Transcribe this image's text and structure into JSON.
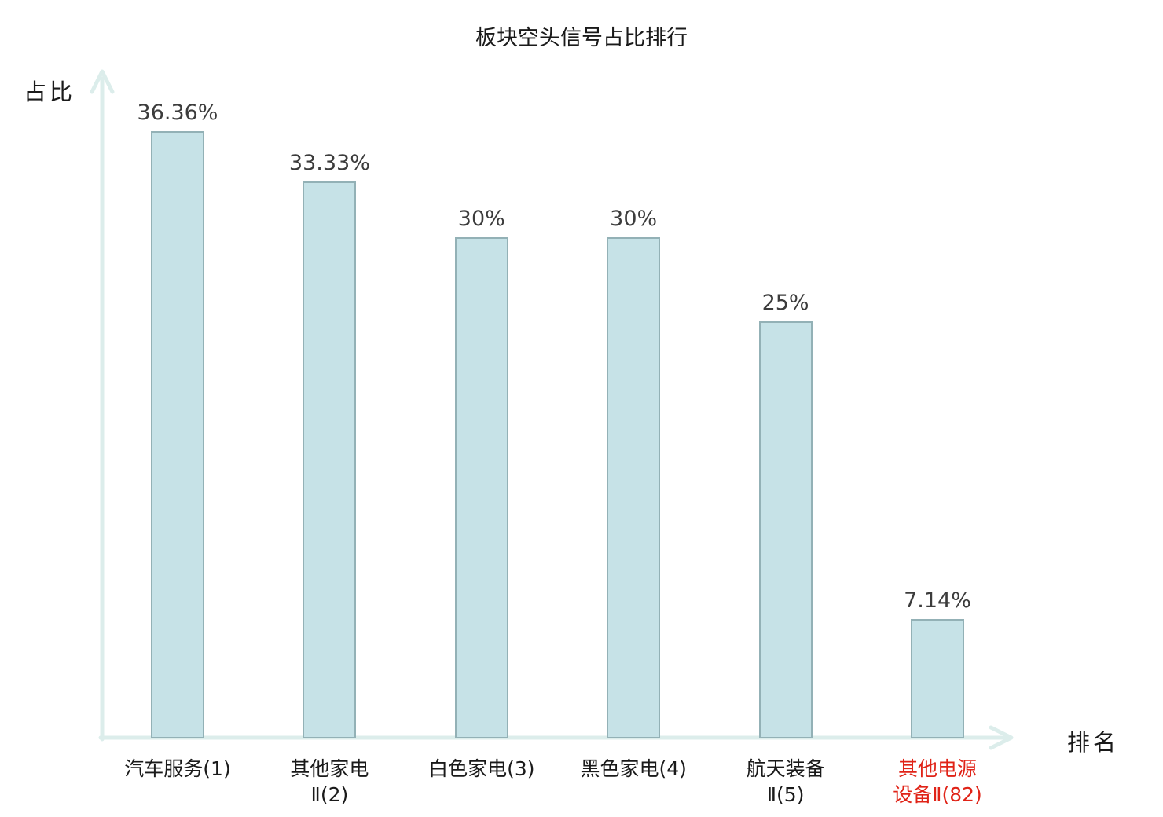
{
  "title": "板块空头信号占比排行",
  "axes": {
    "y_label": "占比",
    "x_label": "排名"
  },
  "colors": {
    "bar_fill": "#c6e2e7",
    "bar_border": "#93b1b6",
    "axis": "#dcedeb",
    "text": "#1a1a1a",
    "value_text": "#3c3c3c",
    "highlight_red": "#e02317"
  },
  "chart_data": {
    "type": "bar",
    "title": "板块空头信号占比排行",
    "xlabel": "排名",
    "ylabel": "占比",
    "categories": [
      "汽车服务(1)",
      "其他家电Ⅱ(2)",
      "白色家电(3)",
      "黑色家电(4)",
      "航天装备Ⅱ(5)",
      "其他电源设备Ⅱ(82)"
    ],
    "category_label_lines": [
      [
        "汽车服务(1)"
      ],
      [
        "其他家电",
        "Ⅱ(2)"
      ],
      [
        "白色家电(3)"
      ],
      [
        "黑色家电(4)"
      ],
      [
        "航天装备",
        "Ⅱ(5)"
      ],
      [
        "其他电源",
        "设备Ⅱ(82)"
      ]
    ],
    "values": [
      36.36,
      33.33,
      30,
      30,
      25,
      7.14
    ],
    "value_labels": [
      "36.36%",
      "33.33%",
      "30%",
      "30%",
      "25%",
      "7.14%"
    ],
    "highlight_index": 5,
    "ylim": [
      0,
      40
    ],
    "grid": false,
    "legend": null
  }
}
